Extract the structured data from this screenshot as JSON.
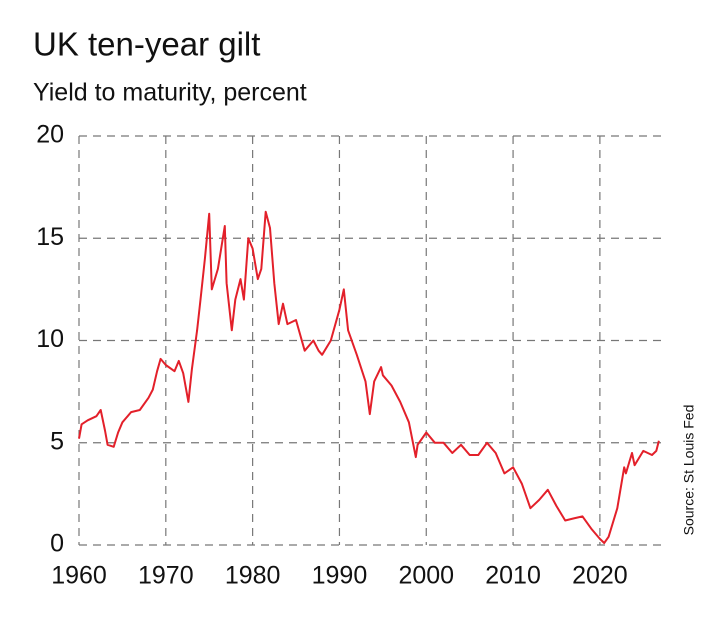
{
  "chart_data": {
    "type": "line",
    "title": "UK ten-year gilt",
    "subtitle": "Yield to maturity, percent",
    "source": "Source: St Louis Fed",
    "color": "#e3202a",
    "grid": true,
    "xlim": [
      1960,
      2027.5
    ],
    "xticks": [
      1960,
      1970,
      1980,
      1990,
      2000,
      2010,
      2020
    ],
    "ylim": [
      0,
      20
    ],
    "yticks": [
      0,
      5,
      10,
      15,
      20
    ],
    "x": [
      1960,
      1960.3,
      1961,
      1962,
      1962.5,
      1963,
      1963.3,
      1964,
      1964.5,
      1965,
      1966,
      1967,
      1968,
      1968.5,
      1969,
      1969.4,
      1970,
      1971,
      1971.5,
      1972,
      1972.6,
      1973,
      1973.6,
      1974,
      1974.5,
      1975,
      1975.3,
      1976,
      1976.8,
      1977,
      1977.6,
      1978,
      1978.6,
      1979,
      1979.5,
      1980,
      1980.6,
      1981,
      1981.5,
      1982,
      1982.5,
      1983,
      1983.5,
      1984,
      1985,
      1986,
      1987,
      1987.6,
      1988,
      1989,
      1990,
      1990.5,
      1991,
      1992,
      1993,
      1993.5,
      1994,
      1994.8,
      1995,
      1996,
      1997,
      1998,
      1998.8,
      1999,
      2000,
      2001,
      2002,
      2003,
      2004,
      2005,
      2006,
      2007,
      2008,
      2009,
      2010,
      2011,
      2012,
      2013,
      2014,
      2015,
      2016,
      2017,
      2018,
      2019,
      2020,
      2020.5,
      2021,
      2022,
      2022.8,
      2023,
      2023.7,
      2024,
      2025,
      2026,
      2026.5,
      2026.8
    ],
    "values": [
      5.2,
      5.9,
      6.1,
      6.3,
      6.6,
      5.6,
      4.9,
      4.8,
      5.5,
      6.0,
      6.5,
      6.6,
      7.2,
      7.6,
      8.5,
      9.1,
      8.8,
      8.5,
      9.0,
      8.4,
      7.0,
      8.6,
      10.5,
      12.0,
      14.0,
      16.2,
      12.5,
      13.5,
      15.6,
      12.8,
      10.5,
      12.0,
      13.0,
      12.0,
      15.0,
      14.5,
      13.0,
      13.5,
      16.3,
      15.5,
      12.8,
      10.8,
      11.8,
      10.8,
      11.0,
      9.5,
      10.0,
      9.5,
      9.3,
      10.0,
      11.5,
      12.5,
      10.5,
      9.3,
      8.0,
      6.4,
      8.0,
      8.7,
      8.3,
      7.8,
      7.0,
      6.0,
      4.3,
      4.9,
      5.5,
      5.0,
      5.0,
      4.5,
      4.9,
      4.4,
      4.4,
      5.0,
      4.5,
      3.5,
      3.8,
      3.0,
      1.8,
      2.2,
      2.7,
      1.9,
      1.2,
      1.3,
      1.4,
      0.8,
      0.3,
      0.1,
      0.4,
      1.8,
      3.8,
      3.5,
      4.5,
      3.9,
      4.6,
      4.4,
      4.6,
      5.1
    ]
  }
}
